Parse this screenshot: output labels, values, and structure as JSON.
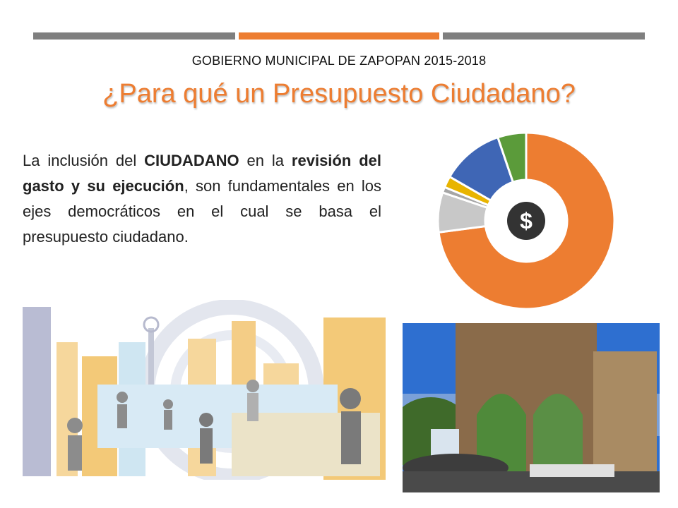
{
  "slide": {
    "header": "GOBIERNO MUNICIPAL DE ZAPOPAN 2015-2018",
    "title": "¿Para qué un Presupuesto Ciudadano?",
    "paragraph": {
      "t1": "La inclusión del ",
      "b1": "CIUDADANO",
      "t2": " en la ",
      "b2": "revisión del gasto y su ejecución",
      "t3": ", son fundamentales en los ejes democráticos en el cual se basa el presupuesto ciudadano."
    }
  },
  "donut": {
    "center_symbol": "$",
    "segments": [
      {
        "value": 70,
        "color": "#ed7d31"
      },
      {
        "value": 7,
        "color": "#c8c8c8"
      },
      {
        "value": 1,
        "color": "#a5a5a5"
      },
      {
        "value": 2,
        "color": "#e8b400"
      },
      {
        "value": 11,
        "color": "#3f66b5"
      },
      {
        "value": 5,
        "color": "#5b9b3a"
      }
    ]
  },
  "colors": {
    "accent": "#ed7d31",
    "bar_gray": "#7f7f7f"
  }
}
